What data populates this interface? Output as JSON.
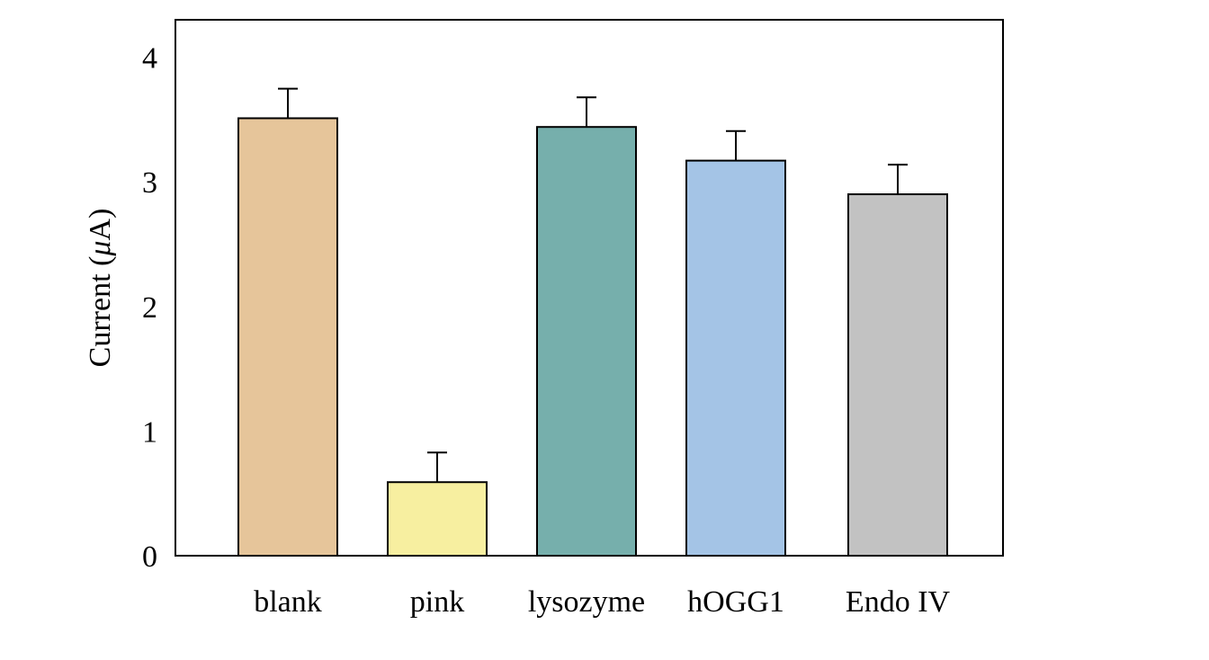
{
  "chart_data": {
    "type": "bar",
    "categories": [
      "blank",
      "pink",
      "lysozyme",
      "hOGG1",
      "Endo IV"
    ],
    "values": [
      3.51,
      0.59,
      3.44,
      3.17,
      2.9
    ],
    "errors": [
      0.05,
      0.05,
      0.05,
      0.05,
      0.05
    ],
    "bar_colors": [
      "#E6C59A",
      "#F7EFA0",
      "#76AFAC",
      "#A4C4E6",
      "#C2C2C2"
    ],
    "ylabel_text": "Current (",
    "ylabel_symbol": "μ",
    "ylabel_unit": "A)",
    "ylim": [
      0,
      4.3
    ],
    "yticks": [
      0,
      1,
      2,
      3,
      4
    ],
    "ytick_labels": [
      "0",
      "1",
      "2",
      "3",
      "4"
    ],
    "grid": false,
    "legend": false
  }
}
